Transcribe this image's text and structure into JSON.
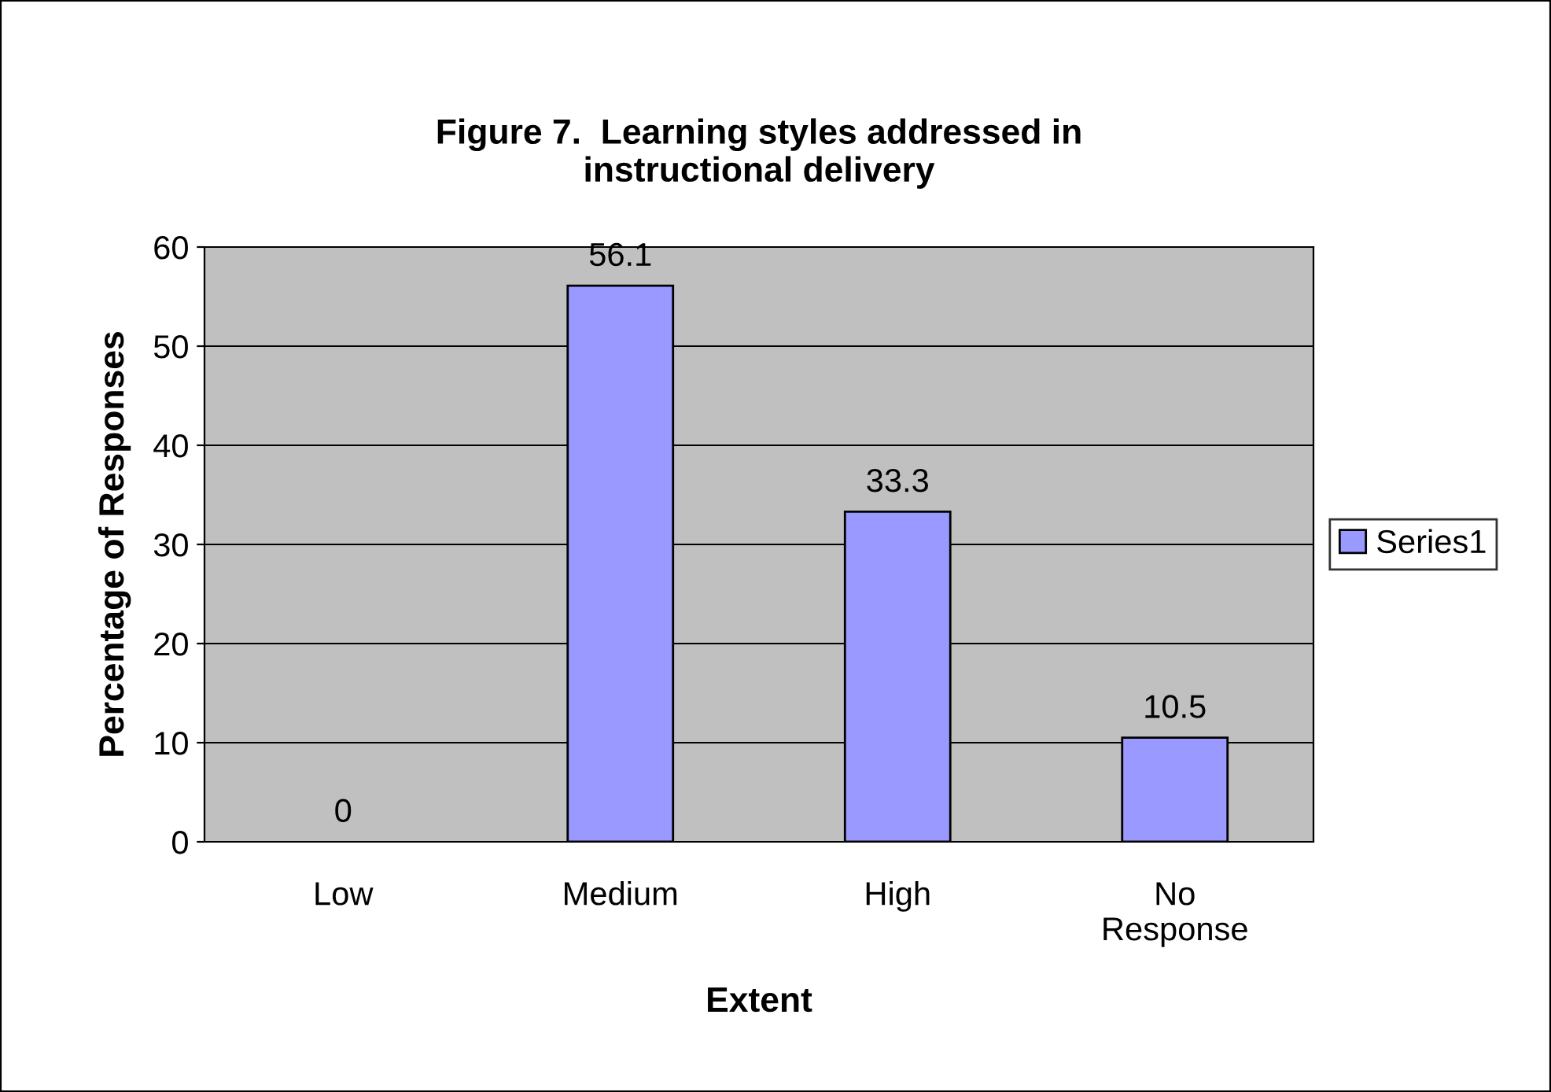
{
  "chart_data": {
    "type": "bar",
    "title": "Figure 7.  Learning styles addressed in\ninstructional delivery",
    "xlabel": "Extent",
    "ylabel": "Percentage of Responses",
    "categories": [
      "Low",
      "Medium",
      "High",
      "No\nResponse"
    ],
    "series": [
      {
        "name": "Series1",
        "color": "#9999ff",
        "values": [
          0,
          56.1,
          33.3,
          10.5
        ]
      }
    ],
    "ylim": [
      0,
      60
    ],
    "yticks": [
      0,
      10,
      20,
      30,
      40,
      50,
      60
    ],
    "grid": "y",
    "legend": "right",
    "data_labels": true
  }
}
